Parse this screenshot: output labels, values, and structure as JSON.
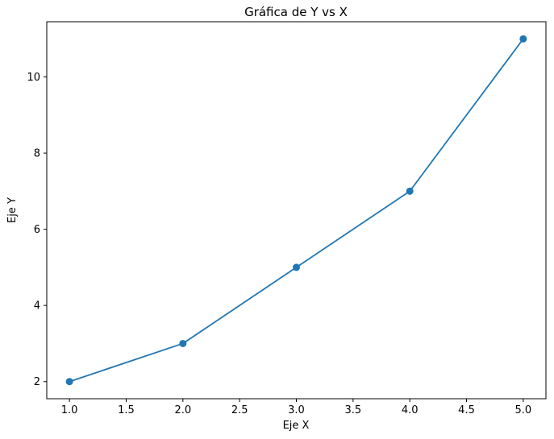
{
  "chart_data": {
    "type": "line",
    "title": "Gráfica de Y vs X",
    "xlabel": "Eje X",
    "ylabel": "Eje Y",
    "x": [
      1,
      2,
      3,
      4,
      5
    ],
    "series": [
      {
        "values": [
          2,
          3,
          5,
          7,
          11
        ],
        "color": "#1f77b4",
        "marker": "circle"
      }
    ],
    "xlim": [
      0.8,
      5.2
    ],
    "ylim": [
      1.55,
      11.45
    ],
    "xticks": [
      1.0,
      1.5,
      2.0,
      2.5,
      3.0,
      3.5,
      4.0,
      4.5,
      5.0
    ],
    "xtick_labels": [
      "1.0",
      "1.5",
      "2.0",
      "2.5",
      "3.0",
      "3.5",
      "4.0",
      "4.5",
      "5.0"
    ],
    "yticks": [
      2,
      4,
      6,
      8,
      10
    ],
    "ytick_labels": [
      "2",
      "4",
      "6",
      "8",
      "10"
    ],
    "grid": false,
    "legend": false
  }
}
